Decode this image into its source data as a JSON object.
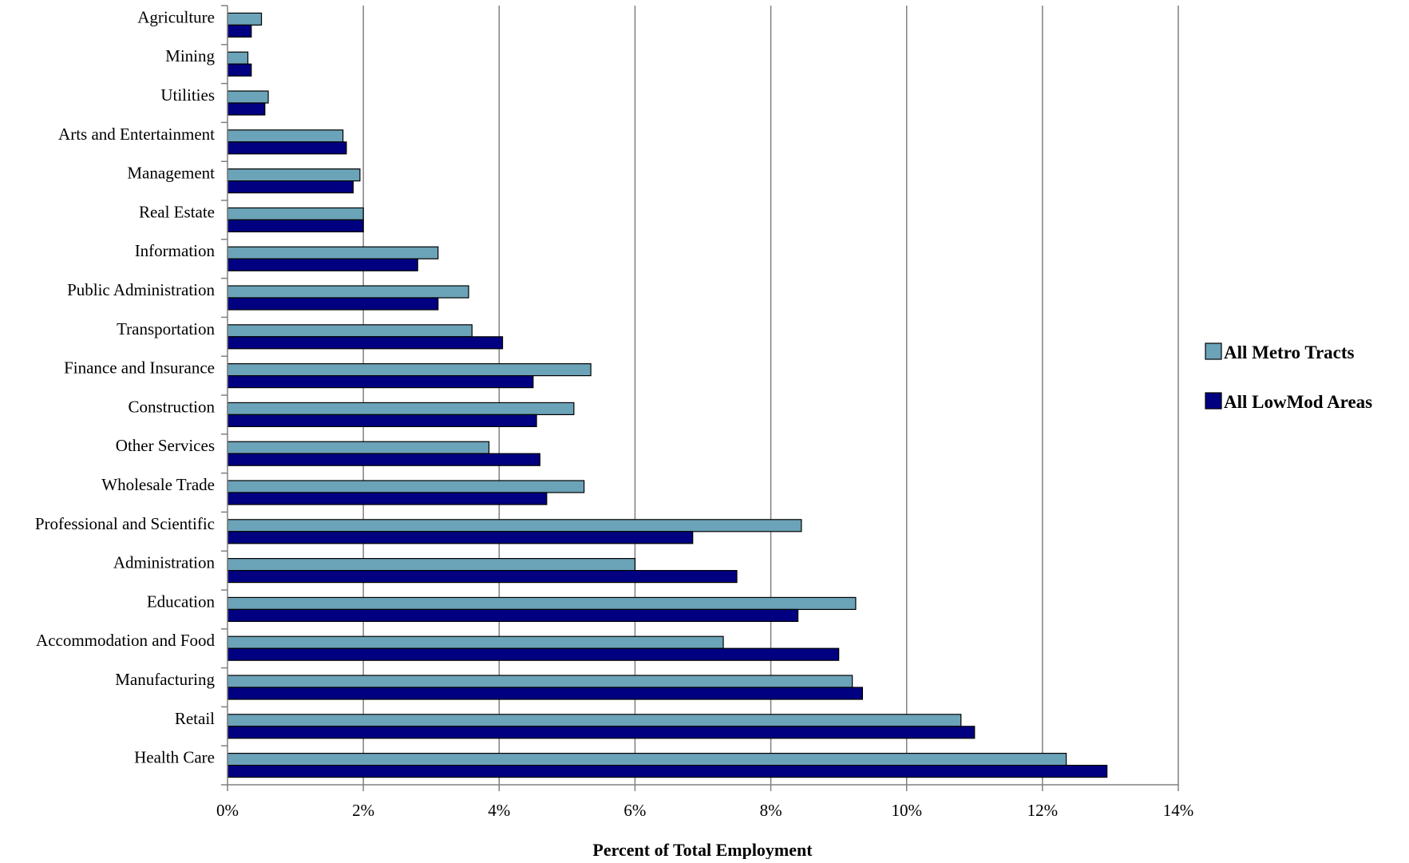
{
  "chart_data": {
    "type": "bar",
    "orientation": "horizontal",
    "categories": [
      "Agriculture",
      "Mining",
      "Utilities",
      "Arts and Entertainment",
      "Management",
      "Real Estate",
      "Information",
      "Public Administration",
      "Transportation",
      "Finance and Insurance",
      "Construction",
      "Other Services",
      "Wholesale Trade",
      "Professional and Scientific",
      "Administration",
      "Education",
      "Accommodation and Food",
      "Manufacturing",
      "Retail",
      "Health Care"
    ],
    "series": [
      {
        "name": "All Metro Tracts",
        "color": "#6BA3B8",
        "values": [
          0.5,
          0.3,
          0.6,
          1.7,
          1.95,
          2.0,
          3.1,
          3.55,
          3.6,
          5.35,
          5.1,
          3.85,
          5.25,
          8.45,
          6.0,
          9.25,
          7.3,
          9.2,
          10.8,
          12.35
        ]
      },
      {
        "name": "All LowMod Areas",
        "color": "#000080",
        "values": [
          0.35,
          0.35,
          0.55,
          1.75,
          1.85,
          2.0,
          2.8,
          3.1,
          4.05,
          4.5,
          4.55,
          4.6,
          4.7,
          6.85,
          7.5,
          8.4,
          9.0,
          9.35,
          11.0,
          12.95
        ]
      }
    ],
    "xlabel": "Percent of Total Employment",
    "xlim": [
      0,
      14
    ],
    "xticks": [
      0,
      2,
      4,
      6,
      8,
      10,
      12,
      14
    ],
    "tick_labels": [
      "0%",
      "2%",
      "4%",
      "6%",
      "8%",
      "10%",
      "12%",
      "14%"
    ],
    "grid": "vertical",
    "legend": "right"
  }
}
